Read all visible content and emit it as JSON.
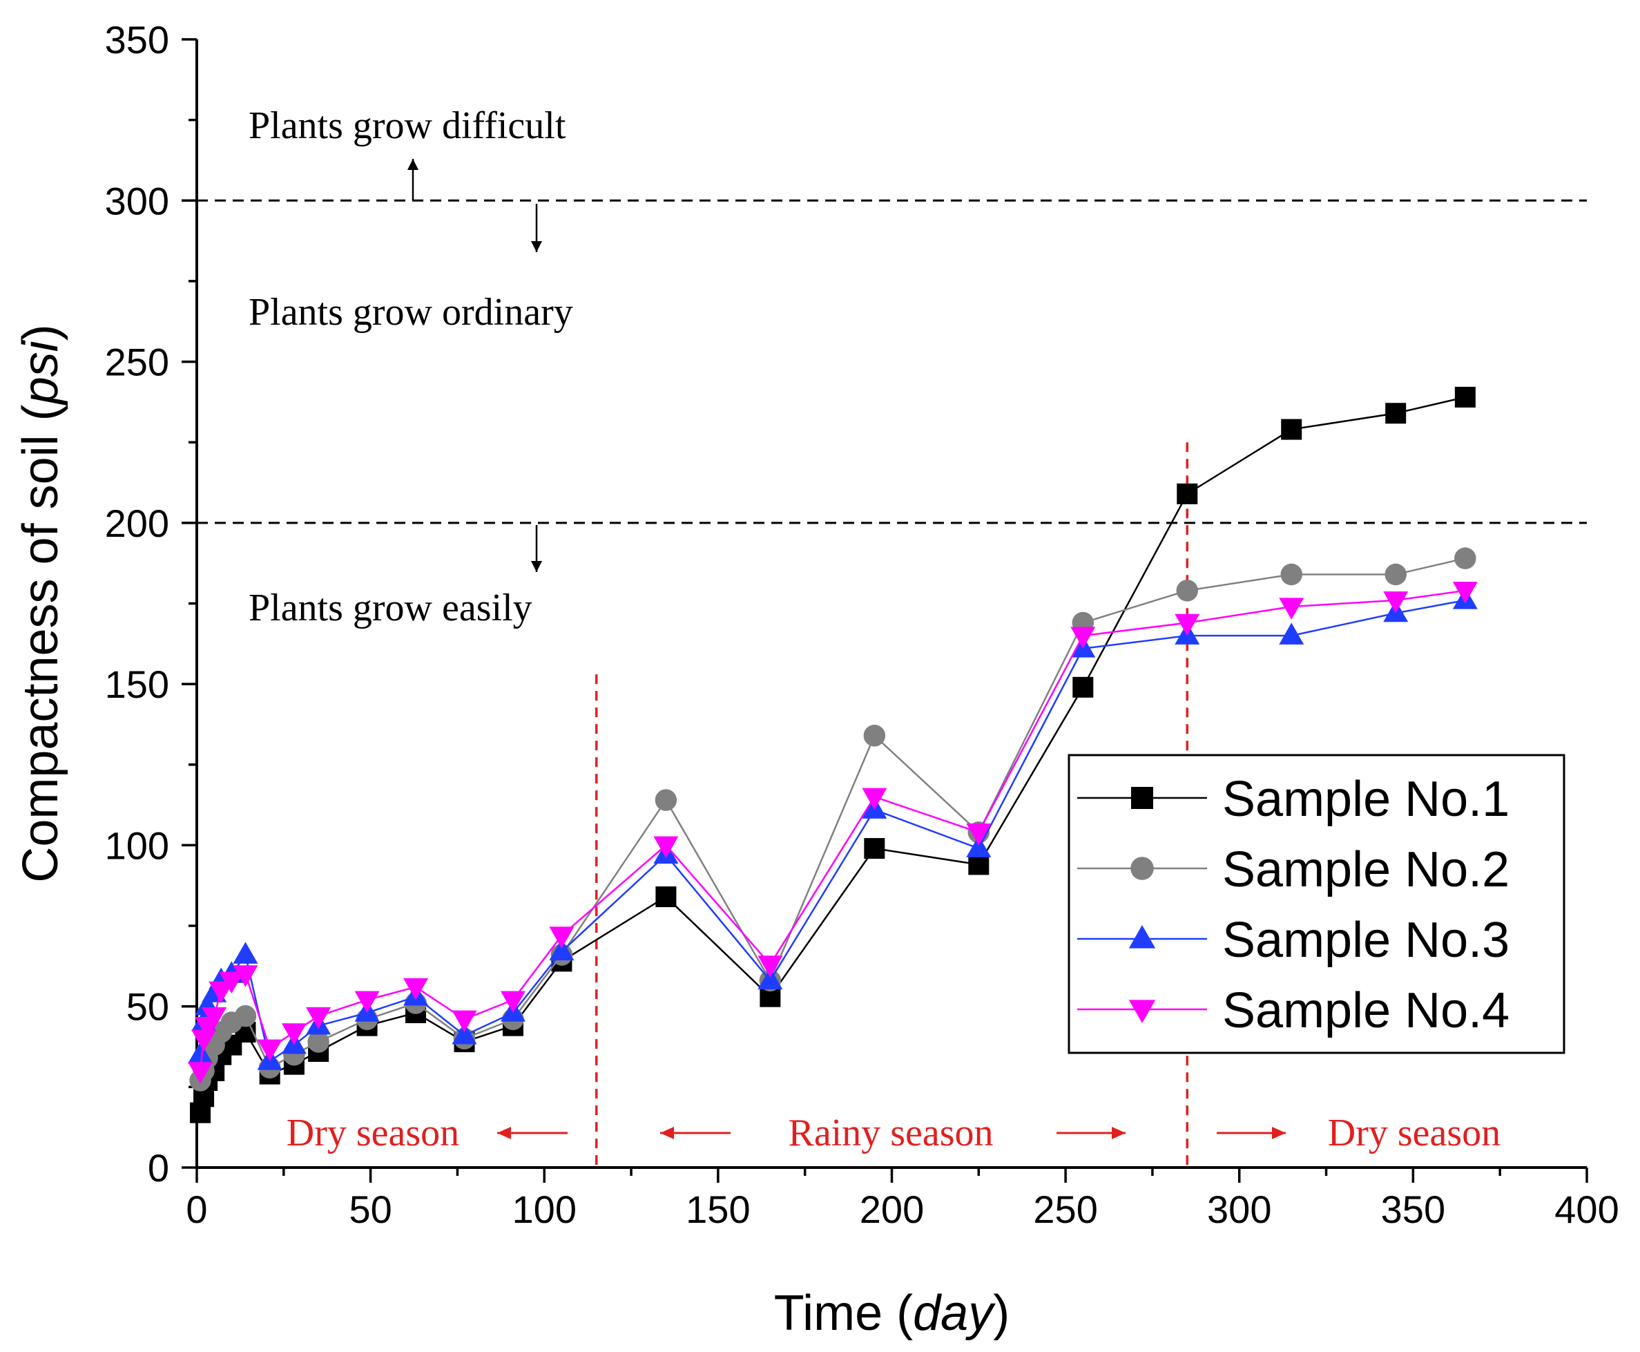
{
  "chart_data": {
    "type": "line",
    "xlabel": "Time",
    "xlabel_unit": "day",
    "ylabel": "Compactness of soil",
    "ylabel_unit": "psi",
    "xlim": [
      0,
      400
    ],
    "ylim": [
      0,
      350
    ],
    "x_ticks": [
      "0",
      "50",
      "100",
      "150",
      "200",
      "250",
      "300",
      "350",
      "400"
    ],
    "y_ticks": [
      "0",
      "50",
      "100",
      "150",
      "200",
      "250",
      "300",
      "350"
    ],
    "legend_position": "bottom-right",
    "reference_lines": [
      {
        "axis": "y",
        "value": 300,
        "style": "dashed",
        "color": "#000000"
      },
      {
        "axis": "y",
        "value": 200,
        "style": "dashed",
        "color": "#000000"
      },
      {
        "axis": "x",
        "value": 115,
        "style": "dashed",
        "color": "#e02020"
      },
      {
        "axis": "x",
        "value": 285,
        "style": "dashed",
        "color": "#e02020"
      }
    ],
    "zone_labels": [
      {
        "text": "Plants grow difficult"
      },
      {
        "text": "Plants grow ordinary"
      },
      {
        "text": "Plants grow easily"
      }
    ],
    "season_labels": [
      {
        "text": "Dry season",
        "color": "#e02020"
      },
      {
        "text": "Rainy season",
        "color": "#e02020"
      },
      {
        "text": "Dry season",
        "color": "#e02020"
      }
    ],
    "series": [
      {
        "name": "Sample No.1",
        "color": "#000000",
        "marker": "square",
        "x": [
          1,
          2,
          3,
          5,
          7,
          10,
          14,
          21,
          28,
          35,
          49,
          63,
          77,
          91,
          105,
          135,
          165,
          195,
          225,
          255,
          285,
          315,
          345,
          365
        ],
        "y": [
          17,
          22,
          27,
          30,
          35,
          38,
          42,
          29,
          32,
          36,
          44,
          48,
          39,
          44,
          64,
          84,
          53,
          99,
          94,
          149,
          209,
          229,
          234,
          239
        ]
      },
      {
        "name": "Sample No.2",
        "color": "#808080",
        "marker": "circle",
        "x": [
          1,
          2,
          3,
          5,
          7,
          10,
          14,
          21,
          28,
          35,
          49,
          63,
          77,
          91,
          105,
          135,
          165,
          195,
          225,
          255,
          285,
          315,
          345,
          365
        ],
        "y": [
          27,
          30,
          34,
          38,
          42,
          45,
          47,
          31,
          35,
          39,
          46,
          51,
          40,
          46,
          66,
          114,
          58,
          134,
          104,
          169,
          179,
          184,
          184,
          189
        ]
      },
      {
        "name": "Sample No.3",
        "color": "#1f3dff",
        "marker": "triangle-up",
        "x": [
          1,
          2,
          3,
          5,
          7,
          10,
          14,
          21,
          28,
          35,
          49,
          63,
          77,
          91,
          105,
          135,
          165,
          195,
          225,
          255,
          285,
          315,
          345,
          365
        ],
        "y": [
          35,
          45,
          50,
          54,
          58,
          60,
          66,
          33,
          38,
          44,
          48,
          53,
          41,
          48,
          67,
          97,
          58,
          111,
          99,
          161,
          165,
          165,
          172,
          176
        ]
      },
      {
        "name": "Sample No.4",
        "color": "#ff00ff",
        "marker": "triangle-down",
        "x": [
          1,
          2,
          3,
          5,
          7,
          10,
          14,
          21,
          28,
          35,
          49,
          63,
          77,
          91,
          105,
          135,
          165,
          195,
          225,
          255,
          285,
          315,
          345,
          365
        ],
        "y": [
          30,
          40,
          44,
          47,
          55,
          58,
          60,
          37,
          42,
          47,
          52,
          56,
          46,
          52,
          72,
          100,
          63,
          115,
          104,
          165,
          169,
          174,
          176,
          179
        ]
      }
    ]
  }
}
